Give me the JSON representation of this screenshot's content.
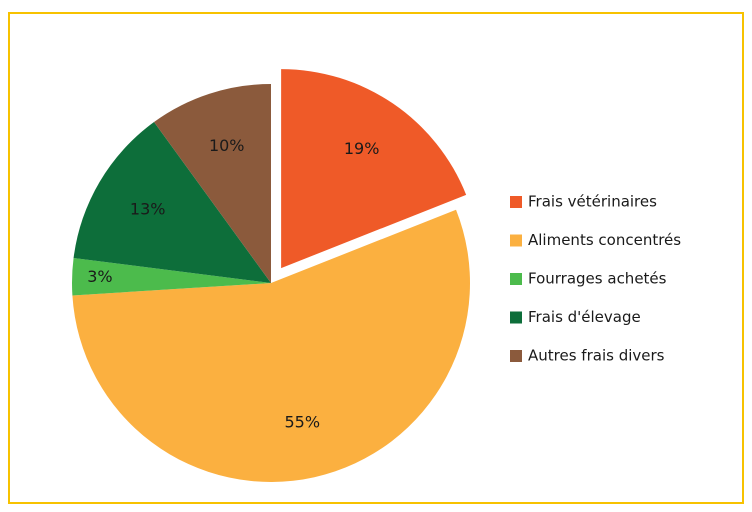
{
  "chart_data": {
    "type": "pie",
    "categories": [
      "Frais vétérinaires",
      "Aliments concentrés",
      "Fourrages achetés",
      "Frais d'élevage",
      "Autres frais divers"
    ],
    "values": [
      19,
      55,
      3,
      13,
      10
    ],
    "value_labels": [
      "19%",
      "55%",
      "3%",
      "13%",
      "10%"
    ],
    "colors": [
      "#ef5a28",
      "#fbb040",
      "#4cbb4c",
      "#0d6e3a",
      "#8b5a3c"
    ],
    "exploded": [
      0
    ],
    "legend": "right"
  }
}
